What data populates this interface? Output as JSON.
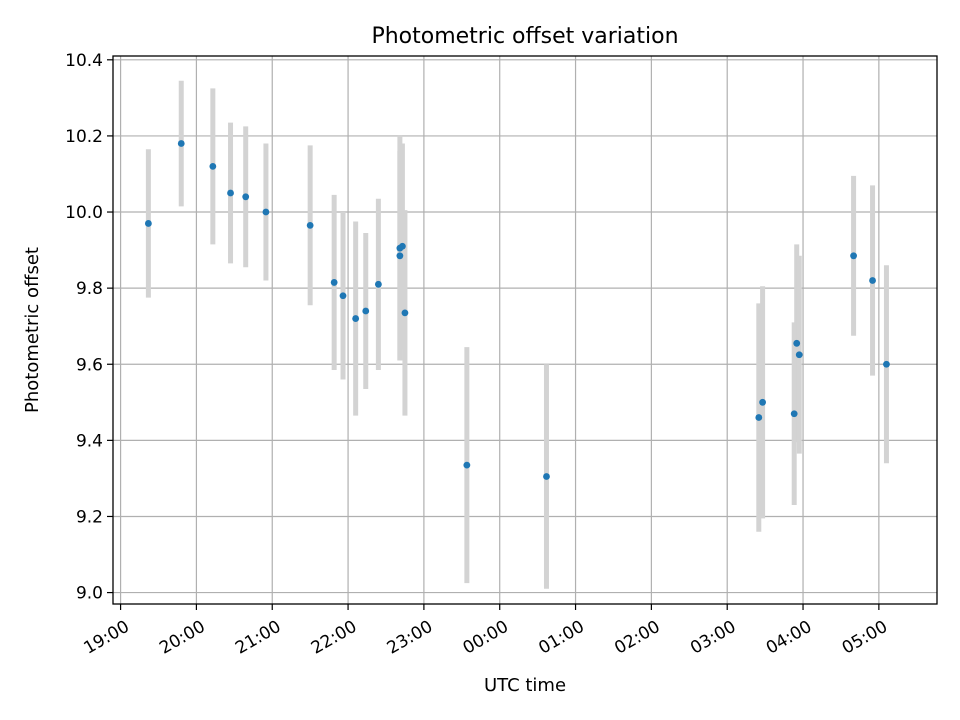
{
  "chart_data": {
    "type": "scatter",
    "title": "Photometric offset variation",
    "xlabel": "UTC time",
    "ylabel": "Photometric offset",
    "x_axis_kind": "time",
    "xlim": [
      "18:54",
      "05:46"
    ],
    "ylim": [
      8.97,
      10.41
    ],
    "grid": true,
    "x_ticks": [
      "19:00",
      "20:00",
      "21:00",
      "22:00",
      "23:00",
      "00:00",
      "01:00",
      "02:00",
      "03:00",
      "04:00",
      "05:00"
    ],
    "y_ticks": [
      "9.0",
      "9.2",
      "9.4",
      "9.6",
      "9.8",
      "10.0",
      "10.2",
      "10.4"
    ],
    "colors": {
      "marker": "#1f77b4",
      "error_bar": "#d3d3d3",
      "grid": "#b0b0b0"
    },
    "series": [
      {
        "points": [
          {
            "x": "19:22",
            "y": 9.97,
            "err": 0.195
          },
          {
            "x": "19:48",
            "y": 10.18,
            "err": 0.165
          },
          {
            "x": "20:13",
            "y": 10.12,
            "err": 0.205
          },
          {
            "x": "20:27",
            "y": 10.05,
            "err": 0.185
          },
          {
            "x": "20:39",
            "y": 10.04,
            "err": 0.185
          },
          {
            "x": "20:55",
            "y": 10.0,
            "err": 0.18
          },
          {
            "x": "21:30",
            "y": 9.965,
            "err": 0.21
          },
          {
            "x": "21:49",
            "y": 9.815,
            "err": 0.23
          },
          {
            "x": "21:56",
            "y": 9.78,
            "err": 0.22
          },
          {
            "x": "22:06",
            "y": 9.72,
            "err": 0.255
          },
          {
            "x": "22:14",
            "y": 9.74,
            "err": 0.205
          },
          {
            "x": "22:24",
            "y": 9.81,
            "err": 0.225
          },
          {
            "x": "22:41",
            "y": 9.905,
            "err": 0.295
          },
          {
            "x": "22:41",
            "y": 9.885,
            "err": 0.275
          },
          {
            "x": "22:43",
            "y": 9.91,
            "err": 0.27
          },
          {
            "x": "22:45",
            "y": 9.735,
            "err": 0.27
          },
          {
            "x": "23:34",
            "y": 9.335,
            "err": 0.31
          },
          {
            "x": "00:37",
            "y": 9.305,
            "err": 0.295
          },
          {
            "x": "03:25",
            "y": 9.46,
            "err": 0.3
          },
          {
            "x": "03:28",
            "y": 9.5,
            "err": 0.305
          },
          {
            "x": "03:53",
            "y": 9.47,
            "err": 0.24
          },
          {
            "x": "03:55",
            "y": 9.655,
            "err": 0.26
          },
          {
            "x": "03:57",
            "y": 9.625,
            "err": 0.26
          },
          {
            "x": "04:40",
            "y": 9.885,
            "err": 0.21
          },
          {
            "x": "04:55",
            "y": 9.82,
            "err": 0.25
          },
          {
            "x": "05:06",
            "y": 9.6,
            "err": 0.26
          }
        ]
      }
    ]
  }
}
